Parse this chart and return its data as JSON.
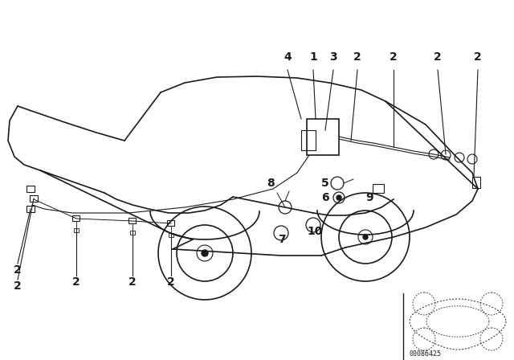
{
  "bg_color": "#ffffff",
  "line_color": "#1a1a1a",
  "fig_width": 6.4,
  "fig_height": 4.48,
  "dpi": 100,
  "diagram_code": "00086425"
}
